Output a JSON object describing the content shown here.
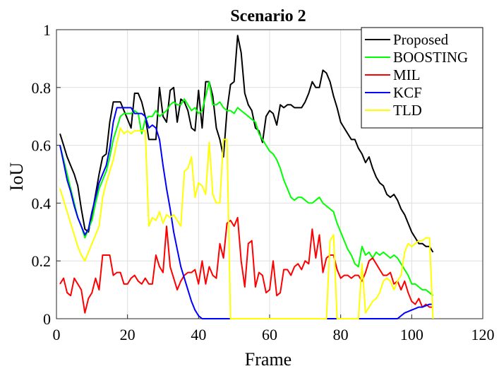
{
  "chart_data": {
    "type": "line",
    "title": "Scenario 2",
    "xlabel": "Frame",
    "ylabel": "IoU",
    "xlim": [
      0,
      120
    ],
    "ylim": [
      0,
      1
    ],
    "xticks": [
      0,
      20,
      40,
      60,
      80,
      100,
      120
    ],
    "xtick_labels": [
      "0",
      "20",
      "40",
      "60",
      "80",
      "100",
      "120"
    ],
    "yticks": [
      0,
      0.2,
      0.4,
      0.6,
      0.8,
      1
    ],
    "ytick_labels": [
      "0",
      "0.2",
      "0.4",
      "0.6",
      "0.8",
      "1"
    ],
    "grid": true,
    "legend": "top-right",
    "x": [
      1,
      2,
      3,
      4,
      5,
      6,
      7,
      8,
      9,
      10,
      11,
      12,
      13,
      14,
      15,
      16,
      17,
      18,
      19,
      20,
      21,
      22,
      23,
      24,
      25,
      26,
      27,
      28,
      29,
      30,
      31,
      32,
      33,
      34,
      35,
      36,
      37,
      38,
      39,
      40,
      41,
      42,
      43,
      44,
      45,
      46,
      47,
      48,
      49,
      50,
      51,
      52,
      53,
      54,
      55,
      56,
      57,
      58,
      59,
      60,
      61,
      62,
      63,
      64,
      65,
      66,
      67,
      68,
      69,
      70,
      71,
      72,
      73,
      74,
      75,
      76,
      77,
      78,
      79,
      80,
      81,
      82,
      83,
      84,
      85,
      86,
      87,
      88,
      89,
      90,
      91,
      92,
      93,
      94,
      95,
      96,
      97,
      98,
      99,
      100,
      101,
      102,
      103,
      104,
      105,
      106
    ],
    "series": [
      {
        "name": "Proposed",
        "color": "#000000",
        "values": [
          0.64,
          0.6,
          0.56,
          0.53,
          0.5,
          0.46,
          0.38,
          0.31,
          0.3,
          0.36,
          0.43,
          0.5,
          0.56,
          0.57,
          0.68,
          0.75,
          0.75,
          0.75,
          0.72,
          0.69,
          0.66,
          0.78,
          0.78,
          0.75,
          0.7,
          0.62,
          0.62,
          0.62,
          0.8,
          0.7,
          0.68,
          0.79,
          0.8,
          0.68,
          0.76,
          0.75,
          0.72,
          0.66,
          0.65,
          0.79,
          0.66,
          0.82,
          0.82,
          0.77,
          0.66,
          0.62,
          0.56,
          0.72,
          0.81,
          0.82,
          0.98,
          0.92,
          0.78,
          0.74,
          0.72,
          0.66,
          0.65,
          0.61,
          0.7,
          0.72,
          0.71,
          0.67,
          0.74,
          0.73,
          0.74,
          0.74,
          0.73,
          0.73,
          0.73,
          0.75,
          0.78,
          0.82,
          0.8,
          0.8,
          0.86,
          0.85,
          0.82,
          0.77,
          0.73,
          0.68,
          0.66,
          0.64,
          0.62,
          0.62,
          0.59,
          0.57,
          0.54,
          0.56,
          0.52,
          0.49,
          0.47,
          0.46,
          0.43,
          0.42,
          0.43,
          0.41,
          0.38,
          0.36,
          0.33,
          0.3,
          0.28,
          0.26,
          0.26,
          0.25,
          0.25,
          0.23
        ]
      },
      {
        "name": "BOOSTING",
        "color": "#00ff00",
        "values": [
          0.6,
          0.55,
          0.5,
          0.45,
          0.4,
          0.35,
          0.32,
          0.28,
          0.31,
          0.34,
          0.4,
          0.45,
          0.48,
          0.51,
          0.56,
          0.62,
          0.66,
          0.7,
          0.71,
          0.71,
          0.71,
          0.72,
          0.71,
          0.64,
          0.69,
          0.7,
          0.7,
          0.72,
          0.7,
          0.71,
          0.72,
          0.74,
          0.75,
          0.74,
          0.74,
          0.76,
          0.74,
          0.72,
          0.73,
          0.71,
          0.72,
          0.77,
          0.82,
          0.74,
          0.74,
          0.75,
          0.73,
          0.72,
          0.72,
          0.71,
          0.73,
          0.72,
          0.71,
          0.7,
          0.69,
          0.68,
          0.64,
          0.62,
          0.6,
          0.58,
          0.57,
          0.55,
          0.52,
          0.48,
          0.45,
          0.42,
          0.41,
          0.42,
          0.42,
          0.41,
          0.4,
          0.4,
          0.41,
          0.42,
          0.4,
          0.39,
          0.38,
          0.37,
          0.33,
          0.3,
          0.27,
          0.24,
          0.22,
          0.19,
          0.18,
          0.25,
          0.22,
          0.23,
          0.21,
          0.23,
          0.22,
          0.23,
          0.22,
          0.21,
          0.22,
          0.21,
          0.19,
          0.17,
          0.15,
          0.12,
          0.12,
          0.11,
          0.1,
          0.1,
          0.09,
          0.08
        ]
      },
      {
        "name": "MIL",
        "color": "#ff0000",
        "values": [
          0.12,
          0.14,
          0.09,
          0.08,
          0.14,
          0.12,
          0.1,
          0.02,
          0.07,
          0.09,
          0.14,
          0.1,
          0.22,
          0.22,
          0.22,
          0.15,
          0.16,
          0.16,
          0.12,
          0.12,
          0.14,
          0.15,
          0.13,
          0.12,
          0.14,
          0.12,
          0.12,
          0.22,
          0.18,
          0.16,
          0.32,
          0.18,
          0.14,
          0.1,
          0.13,
          0.15,
          0.16,
          0.16,
          0.17,
          0.12,
          0.2,
          0.12,
          0.18,
          0.15,
          0.14,
          0.26,
          0.21,
          0.33,
          0.34,
          0.32,
          0.35,
          0.2,
          0.11,
          0.26,
          0.27,
          0.11,
          0.16,
          0.15,
          0.09,
          0.1,
          0.2,
          0.08,
          0.09,
          0.17,
          0.17,
          0.15,
          0.18,
          0.19,
          0.17,
          0.2,
          0.19,
          0.31,
          0.21,
          0.29,
          0.16,
          0.21,
          0.22,
          0.22,
          0.17,
          0.14,
          0.15,
          0.15,
          0.14,
          0.15,
          0.15,
          0.13,
          0.16,
          0.2,
          0.21,
          0.19,
          0.17,
          0.15,
          0.15,
          0.16,
          0.12,
          0.13,
          0.1,
          0.13,
          0.09,
          0.06,
          0.05,
          0.07,
          0.04,
          0.05,
          0.04,
          0.04
        ]
      },
      {
        "name": "KCF",
        "color": "#0000ff",
        "values": [
          0.6,
          0.54,
          0.48,
          0.44,
          0.39,
          0.35,
          0.32,
          0.29,
          0.31,
          0.37,
          0.42,
          0.47,
          0.5,
          0.53,
          0.59,
          0.68,
          0.73,
          0.73,
          0.73,
          0.73,
          0.73,
          0.71,
          0.71,
          0.71,
          0.7,
          0.66,
          0.67,
          0.66,
          0.62,
          0.53,
          0.45,
          0.38,
          0.3,
          0.24,
          0.18,
          0.14,
          0.1,
          0.06,
          0.03,
          0.01,
          0.0,
          0.0,
          0.0,
          0.0,
          0.0,
          0.0,
          0.0,
          0.0,
          0.0,
          0.0,
          0.0,
          0.0,
          0.0,
          0.0,
          0.0,
          0.0,
          0.0,
          0.0,
          0.0,
          0.0,
          0.0,
          0.0,
          0.0,
          0.0,
          0.0,
          0.0,
          0.0,
          0.0,
          0.0,
          0.0,
          0.0,
          0.0,
          0.0,
          0.0,
          0.0,
          0.0,
          0.0,
          0.0,
          0.0,
          0.0,
          0.0,
          0.0,
          0.0,
          0.0,
          0.0,
          0.0,
          0.0,
          0.0,
          0.0,
          0.0,
          0.0,
          0.0,
          0.0,
          0.0,
          0.0,
          0.0,
          0.01,
          0.02,
          0.025,
          0.03,
          0.035,
          0.04,
          0.04,
          0.045,
          0.05,
          0.05
        ]
      },
      {
        "name": "TLD",
        "color": "#ffff00",
        "values": [
          0.45,
          0.41,
          0.37,
          0.33,
          0.29,
          0.25,
          0.22,
          0.2,
          0.23,
          0.26,
          0.29,
          0.32,
          0.42,
          0.47,
          0.51,
          0.55,
          0.61,
          0.66,
          0.64,
          0.65,
          0.64,
          0.65,
          0.65,
          0.65,
          0.65,
          0.32,
          0.35,
          0.34,
          0.37,
          0.33,
          0.36,
          0.35,
          0.36,
          0.34,
          0.32,
          0.51,
          0.52,
          0.56,
          0.42,
          0.47,
          0.46,
          0.43,
          0.61,
          0.43,
          0.4,
          0.4,
          0.62,
          0.62,
          0.0,
          0.0,
          0.0,
          0.0,
          0.0,
          0.0,
          0.0,
          0.0,
          0.0,
          0.0,
          0.0,
          0.0,
          0.0,
          0.0,
          0.0,
          0.0,
          0.0,
          0.0,
          0.0,
          0.0,
          0.0,
          0.0,
          0.0,
          0.0,
          0.0,
          0.0,
          0.0,
          0.0,
          0.27,
          0.29,
          0.0,
          0.0,
          0.0,
          0.0,
          0.0,
          0.0,
          0.0,
          0.19,
          0.02,
          0.04,
          0.06,
          0.07,
          0.09,
          0.13,
          0.14,
          0.13,
          0.1,
          0.13,
          0.15,
          0.23,
          0.26,
          0.25,
          0.26,
          0.27,
          0.27,
          0.28,
          0.28,
          0.0
        ]
      }
    ]
  }
}
